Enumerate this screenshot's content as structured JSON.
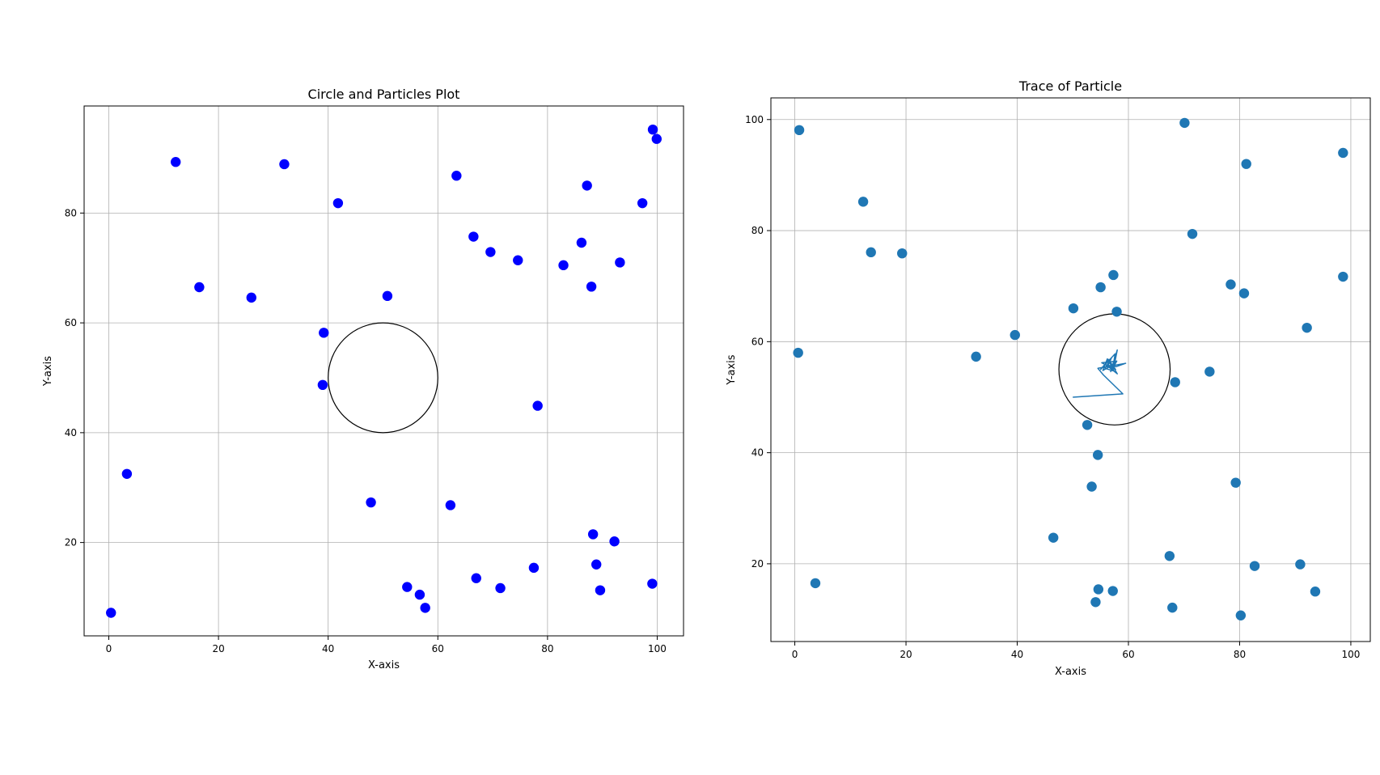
{
  "chart_data": [
    {
      "type": "scatter",
      "title": "Circle and Particles Plot",
      "xlabel": "X-axis",
      "ylabel": "Y-axis",
      "xlim": [
        -4.5,
        104.8
      ],
      "ylim": [
        3.0,
        99.5
      ],
      "xticks": [
        0,
        20,
        40,
        60,
        80,
        100
      ],
      "yticks": [
        20,
        40,
        60,
        80
      ],
      "xtick_labels": [
        "0",
        "20",
        "40",
        "60",
        "80",
        "100"
      ],
      "ytick_labels": [
        "20",
        "40",
        "60",
        "80"
      ],
      "grid": true,
      "marker_color": "#0000ff",
      "circle": {
        "center": [
          50,
          50
        ],
        "radius": 10,
        "color": "#000000"
      },
      "series": [
        {
          "points": [
            [
              0.4,
              7.2
            ],
            [
              3.3,
              32.5
            ],
            [
              12.2,
              89.3
            ],
            [
              16.5,
              66.5
            ],
            [
              26.0,
              64.6
            ],
            [
              32.0,
              88.9
            ],
            [
              41.8,
              81.8
            ],
            [
              39.2,
              58.2
            ],
            [
              39.0,
              48.7
            ],
            [
              50.8,
              64.9
            ],
            [
              47.8,
              27.3
            ],
            [
              54.4,
              11.9
            ],
            [
              56.7,
              10.5
            ],
            [
              57.7,
              8.1
            ],
            [
              62.3,
              26.8
            ],
            [
              63.4,
              86.8
            ],
            [
              66.5,
              75.7
            ],
            [
              69.6,
              72.9
            ],
            [
              74.6,
              71.4
            ],
            [
              67.0,
              13.5
            ],
            [
              71.4,
              11.7
            ],
            [
              77.5,
              15.4
            ],
            [
              78.2,
              44.9
            ],
            [
              82.9,
              70.5
            ],
            [
              86.2,
              74.6
            ],
            [
              87.2,
              85.0
            ],
            [
              88.0,
              66.6
            ],
            [
              88.3,
              21.5
            ],
            [
              88.9,
              16.0
            ],
            [
              89.6,
              11.3
            ],
            [
              92.2,
              20.2
            ],
            [
              93.2,
              71.0
            ],
            [
              97.3,
              81.8
            ],
            [
              99.2,
              95.2
            ],
            [
              99.9,
              93.5
            ],
            [
              99.1,
              12.5
            ]
          ]
        }
      ]
    },
    {
      "type": "scatter",
      "title": "Trace of Particle",
      "xlabel": "X-axis",
      "ylabel": "Y-axis",
      "xlim": [
        -4.3,
        103.5
      ],
      "ylim": [
        6.0,
        103.9
      ],
      "xticks": [
        0,
        20,
        40,
        60,
        80,
        100
      ],
      "yticks": [
        20,
        40,
        60,
        80,
        100
      ],
      "xtick_labels": [
        "0",
        "20",
        "40",
        "60",
        "80",
        "100"
      ],
      "ytick_labels": [
        "20",
        "40",
        "60",
        "80",
        "100"
      ],
      "grid": true,
      "marker_color": "#1f77b4",
      "circle": {
        "center": [
          57.5,
          55.0
        ],
        "radius": 10,
        "color": "#000000"
      },
      "series": [
        {
          "points": [
            [
              0.8,
              98.1
            ],
            [
              0.6,
              58.0
            ],
            [
              3.7,
              16.5
            ],
            [
              12.3,
              85.2
            ],
            [
              13.7,
              76.1
            ],
            [
              19.3,
              75.9
            ],
            [
              32.6,
              57.3
            ],
            [
              39.6,
              61.2
            ],
            [
              46.5,
              24.7
            ],
            [
              50.1,
              66.0
            ],
            [
              52.6,
              45.0
            ],
            [
              53.4,
              33.9
            ],
            [
              54.1,
              13.1
            ],
            [
              54.6,
              15.4
            ],
            [
              54.5,
              39.6
            ],
            [
              55.0,
              69.8
            ],
            [
              57.2,
              15.1
            ],
            [
              57.3,
              72.0
            ],
            [
              57.9,
              65.4
            ],
            [
              68.4,
              52.7
            ],
            [
              67.4,
              21.4
            ],
            [
              67.9,
              12.1
            ],
            [
              70.1,
              99.4
            ],
            [
              71.5,
              79.4
            ],
            [
              74.6,
              54.6
            ],
            [
              78.4,
              70.3
            ],
            [
              79.3,
              34.6
            ],
            [
              80.2,
              10.7
            ],
            [
              80.8,
              68.7
            ],
            [
              81.2,
              92.0
            ],
            [
              82.7,
              19.6
            ],
            [
              90.9,
              19.9
            ],
            [
              92.1,
              62.5
            ],
            [
              93.6,
              15.0
            ],
            [
              98.6,
              94.0
            ],
            [
              98.6,
              71.7
            ]
          ]
        }
      ],
      "trace": {
        "color": "#1f77b4",
        "points": [
          [
            50.0,
            50.0
          ],
          [
            59.0,
            50.6
          ],
          [
            55.5,
            54.0
          ],
          [
            54.5,
            55.2
          ],
          [
            59.5,
            56.1
          ],
          [
            57.8,
            55.5
          ],
          [
            56.0,
            55.8
          ],
          [
            58.0,
            54.2
          ],
          [
            56.5,
            56.8
          ],
          [
            55.0,
            55.0
          ],
          [
            57.6,
            57.8
          ],
          [
            57.2,
            55.2
          ],
          [
            55.2,
            56.2
          ],
          [
            57.9,
            56.5
          ],
          [
            56.8,
            54.6
          ],
          [
            58.0,
            58.5
          ],
          [
            57.5,
            56.0
          ],
          [
            55.4,
            54.8
          ],
          [
            56.2,
            56.9
          ],
          [
            57.7,
            55.0
          ],
          [
            56.3,
            55.6
          ],
          [
            57.0,
            57.2
          ],
          [
            55.8,
            55.2
          ],
          [
            57.4,
            54.7
          ],
          [
            56.6,
            56.3
          ]
        ]
      }
    }
  ]
}
